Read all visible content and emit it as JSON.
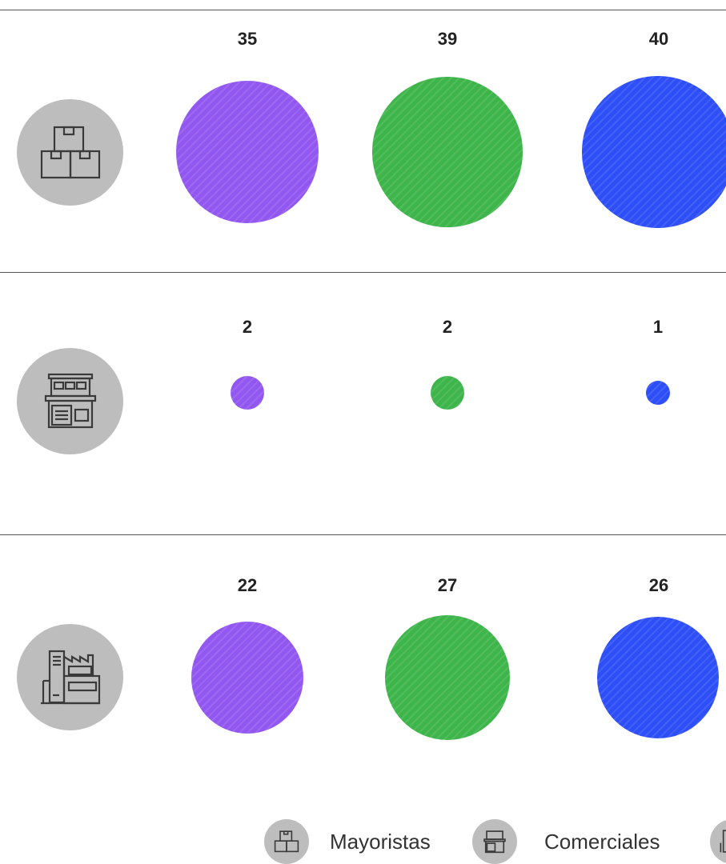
{
  "chart_data": {
    "type": "bubble",
    "rows": [
      {
        "icon": "boxes-icon",
        "values": [
          35,
          39,
          40
        ]
      },
      {
        "icon": "store-icon",
        "values": [
          2,
          2,
          1
        ]
      },
      {
        "icon": "factory-icon",
        "values": [
          22,
          27,
          26
        ]
      }
    ],
    "series_colors": [
      "#9257f0",
      "#3db54a",
      "#2e4ff7"
    ]
  },
  "legend": [
    {
      "icon": "boxes-icon",
      "label": "Mayoristas"
    },
    {
      "icon": "store-icon",
      "label": "Comerciales"
    },
    {
      "icon": "factory-icon",
      "label": ""
    }
  ]
}
